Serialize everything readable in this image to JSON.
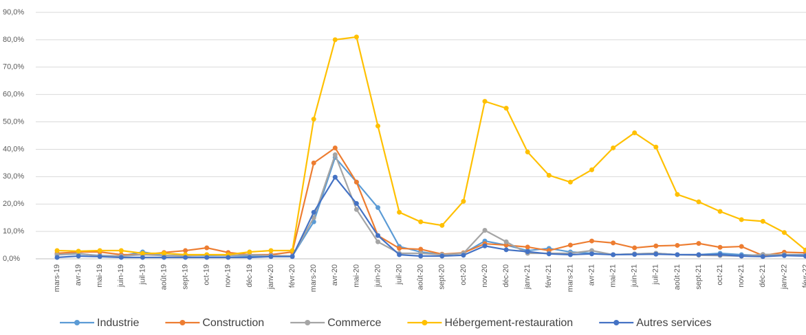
{
  "chart_data": {
    "type": "line",
    "categories": [
      "mars-19",
      "avr-19",
      "mai-19",
      "juin-19",
      "juil-19",
      "août-19",
      "sept-19",
      "oct-19",
      "nov-19",
      "déc-19",
      "janv-20",
      "févr-20",
      "mars-20",
      "avr-20",
      "mai-20",
      "juin-20",
      "juil-20",
      "août-20",
      "sept-20",
      "oct-20",
      "nov-20",
      "déc-20",
      "janv-21",
      "févr-21",
      "mars-21",
      "avr-21",
      "mai-21",
      "juin-21",
      "juil-21",
      "août-21",
      "sept-21",
      "oct-21",
      "nov-21",
      "déc-21",
      "janv-22",
      "févr-22"
    ],
    "series": [
      {
        "name": "Industrie",
        "color": "#5B9BD5",
        "values": [
          1.5,
          1.8,
          1.2,
          1,
          2.5,
          1.2,
          1.2,
          1.2,
          1.2,
          1,
          1.2,
          1,
          13.5,
          37,
          28,
          18.7,
          4.5,
          2.5,
          1.5,
          2,
          6.5,
          5,
          3,
          3.8,
          2.5,
          2,
          1.5,
          1.8,
          2,
          1.5,
          1.5,
          2,
          1.5,
          1.2,
          1.5,
          1.5
        ]
      },
      {
        "name": "Construction",
        "color": "#ED7D31",
        "values": [
          2,
          2.5,
          2.5,
          1.5,
          1.5,
          2.3,
          3,
          4,
          2.3,
          1.5,
          1.5,
          2.5,
          35,
          40.5,
          28,
          8.5,
          3.8,
          3.5,
          1.7,
          2.2,
          5.5,
          5,
          4.3,
          3,
          5,
          6.5,
          5.8,
          4,
          4.7,
          4.9,
          5.6,
          4.2,
          4.5,
          1.2,
          2.4,
          2.2
        ]
      },
      {
        "name": "Commerce",
        "color": "#A5A5A5",
        "values": [
          1.5,
          2,
          1,
          1,
          1.5,
          1.2,
          1,
          1.5,
          1.2,
          1.5,
          1.2,
          1,
          15,
          38,
          18,
          6.2,
          2,
          2,
          1.5,
          2,
          10.4,
          6.2,
          2,
          2,
          2,
          3,
          1.5,
          1.8,
          2,
          1.5,
          1.3,
          1.2,
          1,
          1.6,
          1.5,
          1.2
        ]
      },
      {
        "name": "Hébergement-restauration",
        "color": "#FFC000",
        "values": [
          3,
          2.8,
          3,
          3,
          2,
          2,
          1.5,
          1.5,
          1.5,
          2.5,
          3,
          3,
          51,
          80,
          81,
          48.5,
          17,
          13.5,
          12.2,
          21,
          57.5,
          55,
          39,
          30.5,
          28,
          32.5,
          40.5,
          46,
          40.8,
          23.5,
          20.8,
          17.3,
          14.3,
          13.7,
          9.6,
          3.2
        ]
      },
      {
        "name": "Autres services",
        "color": "#4472C4",
        "values": [
          0.5,
          1,
          0.8,
          0.5,
          0.5,
          0.5,
          0.5,
          0.5,
          0.5,
          0.5,
          0.8,
          0.8,
          17,
          29.8,
          20.2,
          8.5,
          1.5,
          1,
          1,
          1.3,
          4.7,
          3.3,
          2.6,
          1.8,
          1.5,
          1.8,
          1.5,
          1.6,
          1.7,
          1.5,
          1.5,
          1.5,
          1,
          0.8,
          1.2,
          1
        ]
      }
    ],
    "ylim": [
      0,
      90
    ],
    "yticks": [
      {
        "value": 0,
        "label": "0,0%"
      },
      {
        "value": 10,
        "label": "10,0%"
      },
      {
        "value": 20,
        "label": "20,0%"
      },
      {
        "value": 30,
        "label": "30,0%"
      },
      {
        "value": 40,
        "label": "40,0%"
      },
      {
        "value": 50,
        "label": "50,0%"
      },
      {
        "value": 60,
        "label": "60,0%"
      },
      {
        "value": 70,
        "label": "70,0%"
      },
      {
        "value": 80,
        "label": "80,0%"
      },
      {
        "value": 90,
        "label": "90,0%"
      }
    ],
    "grid": true,
    "legend": "bottom"
  }
}
